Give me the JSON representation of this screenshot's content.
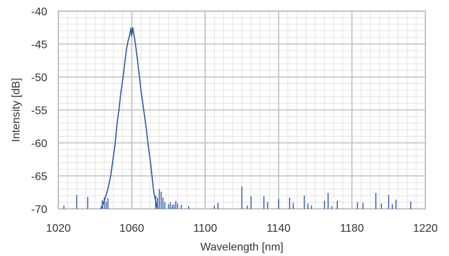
{
  "chart_data": {
    "type": "line",
    "title": "",
    "xlabel": "Wavelength [nm]",
    "ylabel": "Intensity [dB]",
    "xlim": [
      1020,
      1220
    ],
    "ylim": [
      -70,
      -40
    ],
    "x_ticks": [
      1020,
      1060,
      1100,
      1140,
      1180,
      1220
    ],
    "y_ticks": [
      -40,
      -45,
      -50,
      -55,
      -60,
      -65,
      -70
    ],
    "x_minor_step": 5,
    "y_minor_step": 1,
    "grid": true,
    "legend": "none",
    "line_color": "#2f55a4",
    "grid_major_color": "#bfbfbf",
    "grid_minor_color": "#e3e3e3",
    "series": [
      {
        "peak": [
          [
            1043.0,
            -70.0
          ],
          [
            1045.0,
            -68.8
          ],
          [
            1047.0,
            -67.0
          ],
          [
            1048.5,
            -65.0
          ],
          [
            1050.0,
            -62.0
          ],
          [
            1051.0,
            -60.0
          ],
          [
            1052.0,
            -57.0
          ],
          [
            1053.0,
            -55.0
          ],
          [
            1054.0,
            -52.5
          ],
          [
            1055.0,
            -50.5
          ],
          [
            1056.0,
            -48.3
          ],
          [
            1057.0,
            -46.0
          ],
          [
            1058.0,
            -44.5
          ],
          [
            1059.0,
            -43.5
          ],
          [
            1059.5,
            -42.6
          ],
          [
            1060.0,
            -43.8
          ],
          [
            1060.5,
            -42.5
          ],
          [
            1061.0,
            -43.2
          ],
          [
            1062.0,
            -45.0
          ],
          [
            1063.0,
            -47.2
          ],
          [
            1064.0,
            -49.5
          ],
          [
            1065.0,
            -52.0
          ],
          [
            1066.0,
            -54.0
          ],
          [
            1067.0,
            -56.0
          ],
          [
            1068.0,
            -58.0
          ],
          [
            1069.0,
            -60.5
          ],
          [
            1070.0,
            -62.5
          ],
          [
            1071.0,
            -65.0
          ],
          [
            1072.0,
            -67.5
          ],
          [
            1073.0,
            -68.8
          ],
          [
            1074.0,
            -70.0
          ]
        ],
        "spikes": [
          [
            1023,
            -69.5
          ],
          [
            1030,
            -67.9
          ],
          [
            1036,
            -68.2
          ],
          [
            1044,
            -68.7
          ],
          [
            1045,
            -68.3
          ],
          [
            1046,
            -68.9
          ],
          [
            1047,
            -68.4
          ],
          [
            1073,
            -68.0
          ],
          [
            1074,
            -68.3
          ],
          [
            1075,
            -67.0
          ],
          [
            1076,
            -67.4
          ],
          [
            1077,
            -68.3
          ],
          [
            1078,
            -69.0
          ],
          [
            1080,
            -69.3
          ],
          [
            1081,
            -69.0
          ],
          [
            1082,
            -69.4
          ],
          [
            1083,
            -69.3
          ],
          [
            1084,
            -68.8
          ],
          [
            1085,
            -69.2
          ],
          [
            1087,
            -69.4
          ],
          [
            1091,
            -69.6
          ],
          [
            1105,
            -69.5
          ],
          [
            1107,
            -69.1
          ],
          [
            1120,
            -66.6
          ],
          [
            1123,
            -69.5
          ],
          [
            1125,
            -68.1
          ],
          [
            1132,
            -68.1
          ],
          [
            1134,
            -69.0
          ],
          [
            1140,
            -68.5
          ],
          [
            1146,
            -68.3
          ],
          [
            1148,
            -69.1
          ],
          [
            1154,
            -68.0
          ],
          [
            1156,
            -69.2
          ],
          [
            1158,
            -69.5
          ],
          [
            1165,
            -68.8
          ],
          [
            1167,
            -67.6
          ],
          [
            1169,
            -69.6
          ],
          [
            1172,
            -68.8
          ],
          [
            1183,
            -69.0
          ],
          [
            1186,
            -69.1
          ],
          [
            1193,
            -67.6
          ],
          [
            1196,
            -69.2
          ],
          [
            1200,
            -67.9
          ],
          [
            1202,
            -69.3
          ],
          [
            1204,
            -68.6
          ],
          [
            1212,
            -68.9
          ]
        ]
      }
    ]
  }
}
